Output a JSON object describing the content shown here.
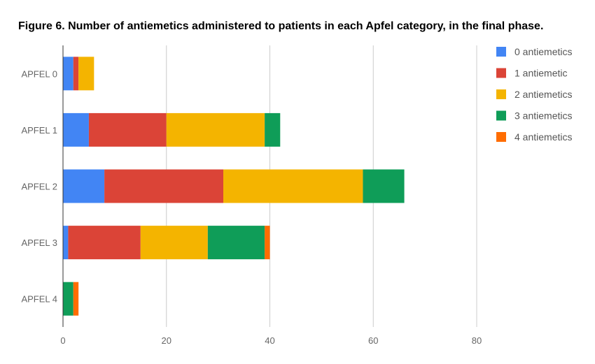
{
  "chart_data": {
    "type": "bar",
    "orientation": "horizontal",
    "stacked": true,
    "title": "Figure 6.  Number of antiemetics administered to patients in each Apfel category, in the final phase.",
    "xlabel": "",
    "ylabel": "",
    "xlim": [
      0,
      80
    ],
    "x_ticks": [
      "0",
      "20",
      "40",
      "60",
      "80"
    ],
    "x_tick_values": [
      0,
      20,
      40,
      60,
      80
    ],
    "grid": "vertical",
    "legend_position": "right",
    "categories": [
      "APFEL 0",
      "APFEL 1",
      "APFEL 2",
      "APFEL 3",
      "APFEL 4"
    ],
    "series": [
      {
        "name": "0 antiemetics",
        "color": "#4285f4",
        "values": [
          2,
          5,
          8,
          1,
          0
        ]
      },
      {
        "name": "1 antiemetic",
        "color": "#db4437",
        "values": [
          1,
          15,
          23,
          14,
          0
        ]
      },
      {
        "name": "2 antiemetics",
        "color": "#f4b400",
        "values": [
          3,
          19,
          27,
          13,
          0
        ]
      },
      {
        "name": "3 antiemetics",
        "color": "#0f9d58",
        "values": [
          0,
          3,
          8,
          11,
          2
        ]
      },
      {
        "name": "4 antiemetics",
        "color": "#ff6d01",
        "values": [
          0,
          0,
          0,
          1,
          1
        ]
      }
    ]
  }
}
